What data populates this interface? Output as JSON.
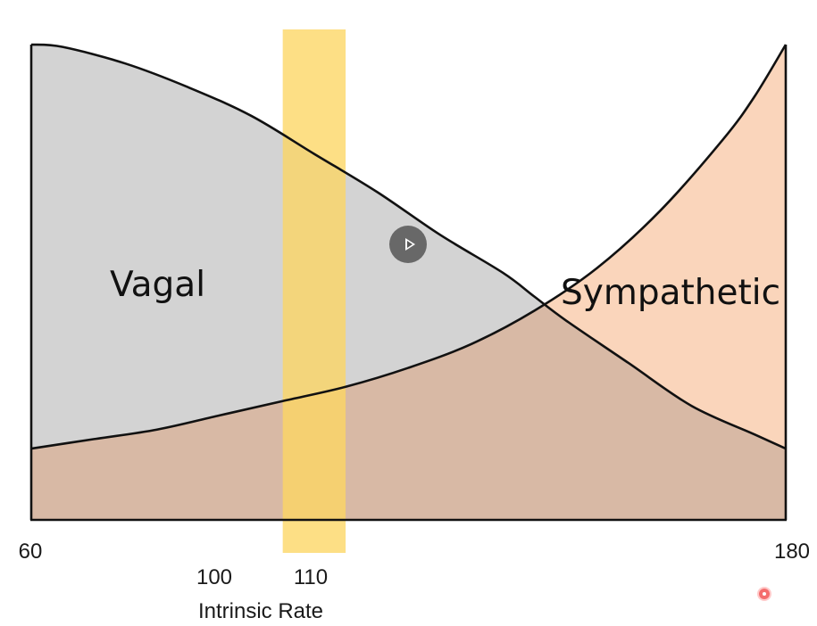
{
  "chart_data": {
    "type": "area",
    "title": "",
    "xlabel": "Intrinsic Rate",
    "ylabel": "",
    "xlim": [
      60,
      180
    ],
    "ylim": [
      0,
      1
    ],
    "grid": false,
    "x_tick_labels": [
      "60",
      "180"
    ],
    "highlight_band": {
      "x_range": [
        100,
        110
      ],
      "labels": [
        "100",
        "110"
      ],
      "color": "#FDD663"
    },
    "series": [
      {
        "name": "Vagal",
        "color": "#D3D3D3",
        "x": [
          60,
          65,
          75,
          85,
          95,
          105,
          115,
          125,
          135,
          140,
          145,
          155,
          165,
          175,
          180
        ],
        "values": [
          1.0,
          0.995,
          0.96,
          0.91,
          0.85,
          0.77,
          0.69,
          0.6,
          0.52,
          0.47,
          0.42,
          0.33,
          0.24,
          0.18,
          0.15
        ]
      },
      {
        "name": "Sympathetic",
        "color": "#FAD5BB",
        "x": [
          60,
          70,
          80,
          90,
          100,
          110,
          120,
          130,
          140,
          150,
          160,
          170,
          175,
          180
        ],
        "values": [
          0.15,
          0.17,
          0.19,
          0.22,
          0.25,
          0.28,
          0.32,
          0.37,
          0.44,
          0.53,
          0.65,
          0.8,
          0.89,
          1.0
        ]
      }
    ]
  },
  "colors": {
    "vagal_fill": "#D3D3D3",
    "sympathetic_fill": "#FAD5BB",
    "overlap_fill": "#D8B9A5",
    "band_fill": "#FDD663",
    "line": "#111111"
  },
  "icons": {
    "play": "play-icon",
    "cursor": "cursor-dot-icon"
  }
}
